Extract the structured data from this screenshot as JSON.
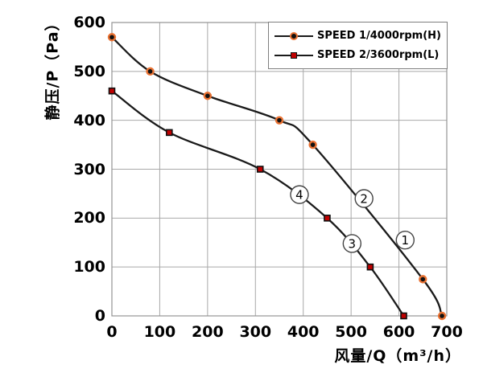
{
  "chart_data": {
    "type": "line",
    "title": "",
    "xlabel": "风量/Q（m³/h）",
    "ylabel": "静压/P（Pa）",
    "xlim": [
      0,
      700
    ],
    "ylim": [
      0,
      600
    ],
    "x_ticks": [
      "0",
      "100",
      "200",
      "300",
      "400",
      "500",
      "600",
      "700"
    ],
    "y_ticks": [
      "0",
      "100",
      "200",
      "300",
      "400",
      "500",
      "600"
    ],
    "grid": true,
    "legend_position": "top-right",
    "series": [
      {
        "name": "SPEED 1/4000rpm(H)",
        "marker": "circle",
        "line_color": "#1a1a1a",
        "marker_fill": "#111111",
        "marker_ring": "#e97132",
        "points": [
          [
            0,
            570
          ],
          [
            80,
            500
          ],
          [
            200,
            450
          ],
          [
            350,
            400
          ],
          [
            420,
            350
          ],
          [
            650,
            75
          ],
          [
            690,
            0
          ]
        ]
      },
      {
        "name": "SPEED 2/3600rpm(L)",
        "marker": "square",
        "line_color": "#1a1a1a",
        "marker_fill": "#c00000",
        "marker_ring": "#111111",
        "points": [
          [
            0,
            460
          ],
          [
            120,
            375
          ],
          [
            310,
            300
          ],
          [
            450,
            200
          ],
          [
            540,
            100
          ],
          [
            610,
            0
          ]
        ]
      }
    ],
    "annotations": [
      {
        "label": "1",
        "x": 613,
        "y": 155
      },
      {
        "label": "2",
        "x": 527,
        "y": 240
      },
      {
        "label": "3",
        "x": 502,
        "y": 148
      },
      {
        "label": "4",
        "x": 392,
        "y": 248
      }
    ],
    "colors": {
      "grid": "#a8a8a8",
      "border": "#949494",
      "curve": "#1a1a1a",
      "annotation_ring": "#444444",
      "text": "#000000",
      "background": "#ffffff",
      "legend_border": "#7f7f7f"
    }
  }
}
